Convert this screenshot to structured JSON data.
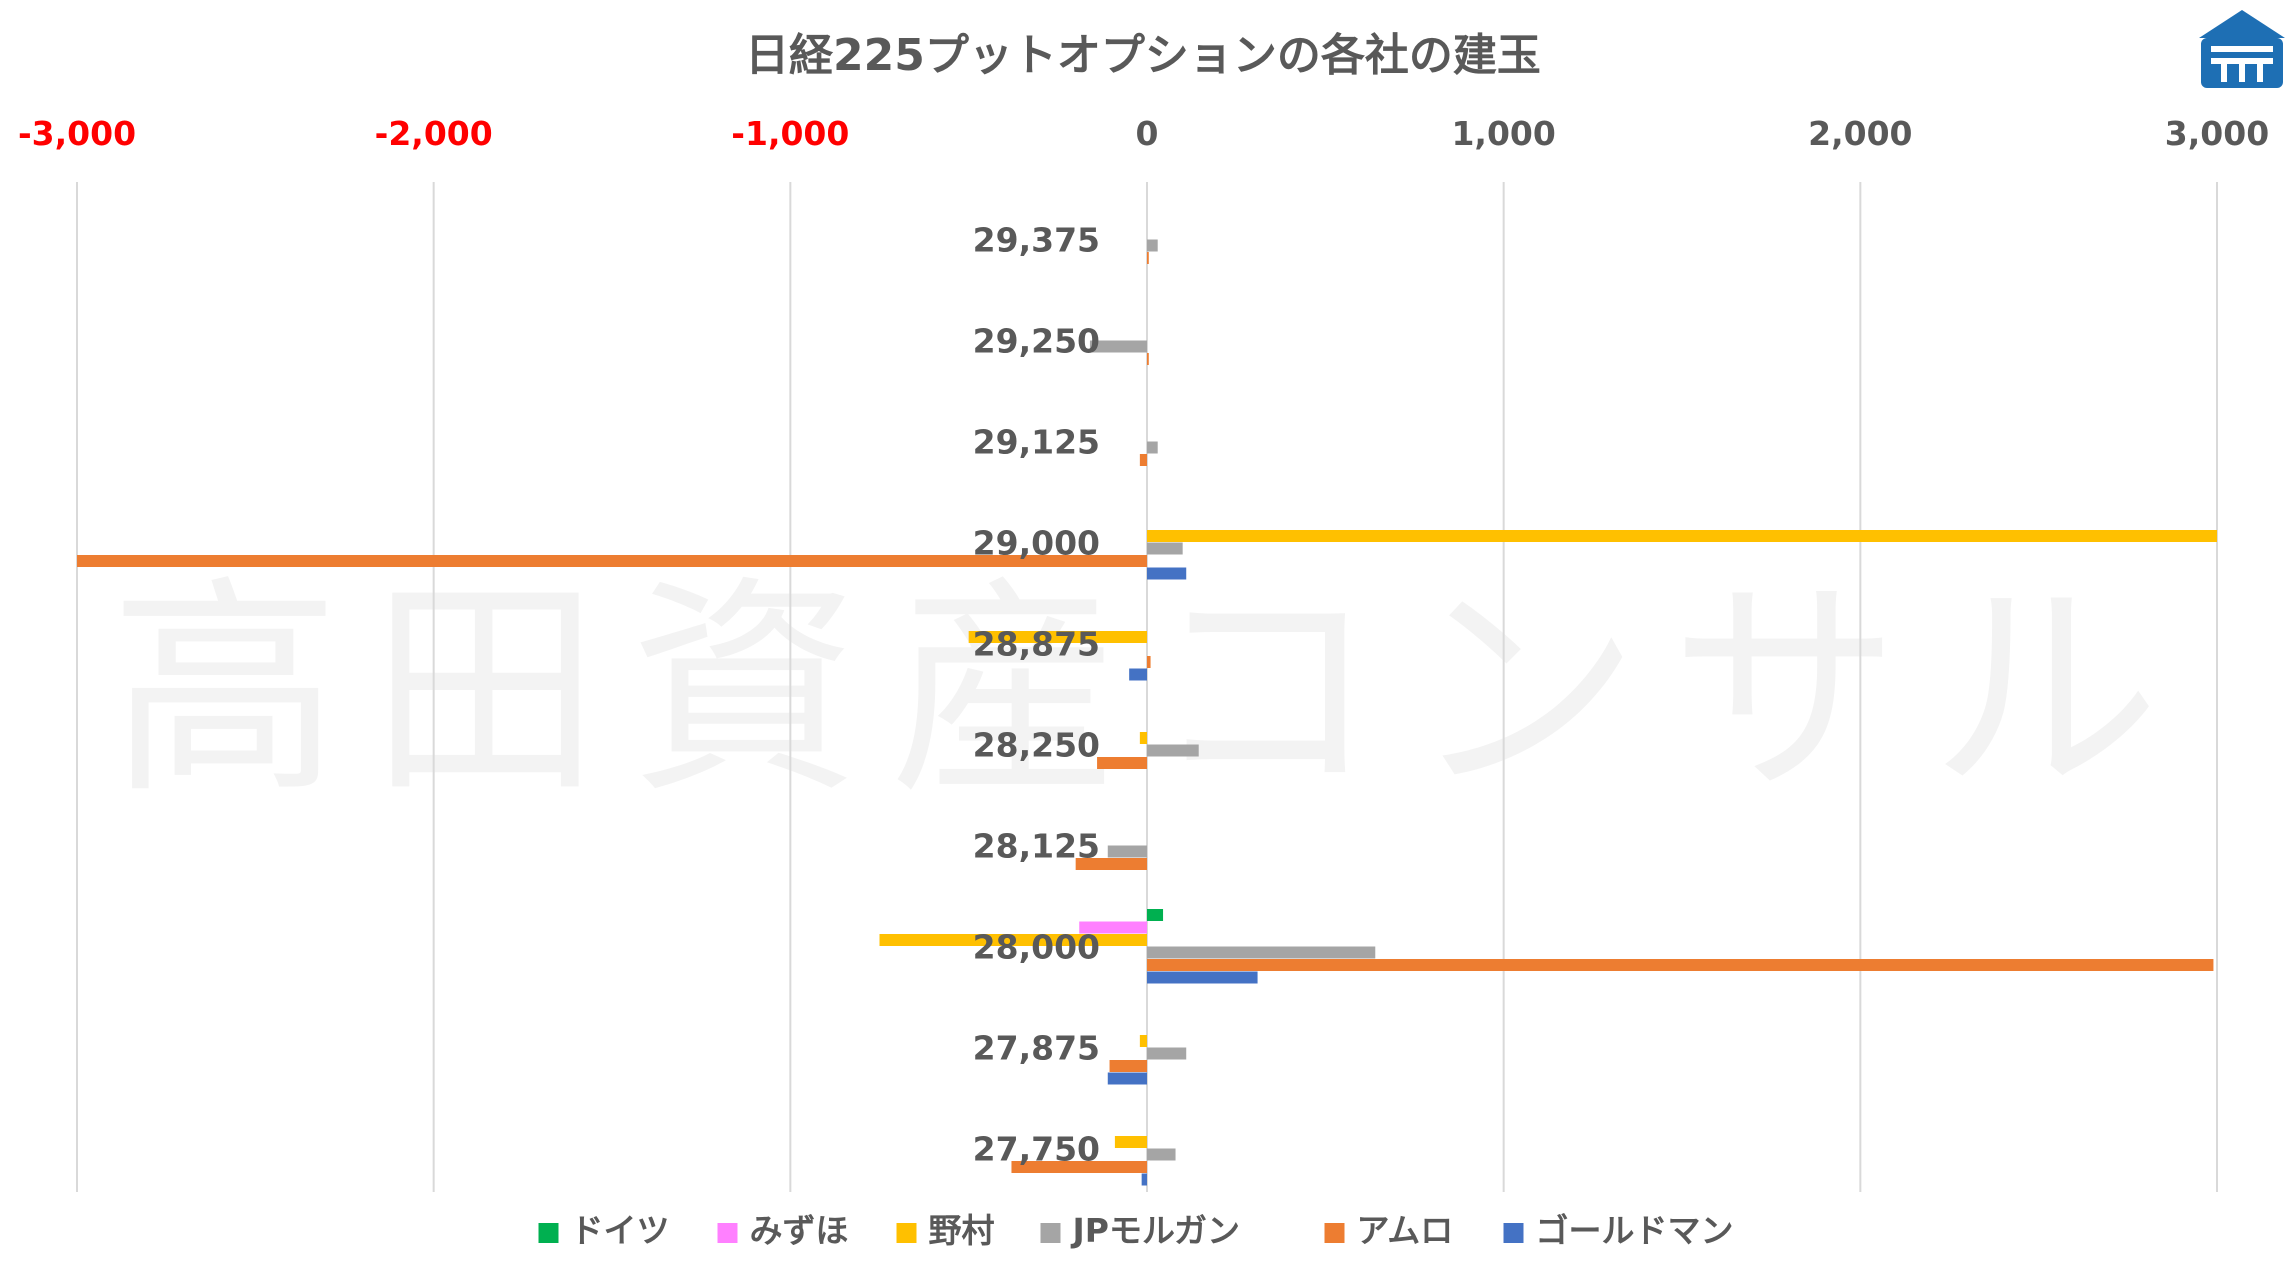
{
  "watermark": "高田資産コンサル",
  "colors": {
    "negative_tick": "#ff0000",
    "positive_tick": "#595959",
    "grid": "#d9d9d9",
    "logo": "#1e6fb4"
  },
  "chart_data": {
    "type": "bar",
    "orientation": "horizontal",
    "title": "日経225プットオプションの各社の建玉",
    "xlim": [
      -3000,
      3000
    ],
    "x_ticks": [
      -3000,
      -2000,
      -1000,
      0,
      1000,
      2000,
      3000
    ],
    "x_tick_labels": [
      "-3,000",
      "-2,000",
      "-1,000",
      "0",
      "1,000",
      "2,000",
      "3,000"
    ],
    "grid": true,
    "legend_position": "bottom",
    "categories": [
      "29,375",
      "29,250",
      "29,125",
      "29,000",
      "28,875",
      "28,250",
      "28,125",
      "28,000",
      "27,875",
      "27,750"
    ],
    "series": [
      {
        "name": "ドイツ",
        "color": "#00b050",
        "values": [
          0,
          0,
          0,
          0,
          0,
          0,
          0,
          45,
          0,
          0
        ]
      },
      {
        "name": "みずほ",
        "color": "#ff80ff",
        "values": [
          0,
          0,
          0,
          0,
          0,
          0,
          0,
          -190,
          0,
          0
        ]
      },
      {
        "name": "野村",
        "color": "#ffc000",
        "values": [
          0,
          0,
          0,
          3000,
          -500,
          -20,
          0,
          -750,
          -20,
          -90
        ]
      },
      {
        "name": "JPモルガン",
        "color": "#a5a5a5",
        "values": [
          30,
          -160,
          30,
          100,
          0,
          145,
          -110,
          640,
          110,
          80
        ]
      },
      {
        "name": "アムロ",
        "color": "#ed7d31",
        "values": [
          5,
          5,
          -20,
          -3000,
          10,
          -140,
          -200,
          2990,
          -105,
          -380
        ]
      },
      {
        "name": "ゴールドマン",
        "color": "#4472c4",
        "values": [
          0,
          0,
          0,
          110,
          -50,
          0,
          0,
          310,
          -110,
          -15
        ]
      }
    ]
  }
}
